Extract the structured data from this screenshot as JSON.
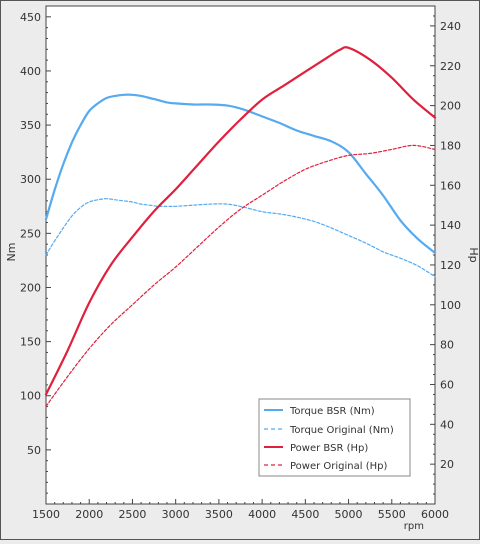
{
  "chart_data": {
    "type": "line",
    "title": "",
    "xlabel": "rpm",
    "ylabel_left": "Nm",
    "ylabel_right": "Hp",
    "xlim": [
      1500,
      6000
    ],
    "ylim_left": [
      0,
      460
    ],
    "ylim_right": [
      0,
      250
    ],
    "x_ticks": [
      1500,
      2000,
      2500,
      3000,
      3500,
      4000,
      4500,
      5000,
      5500,
      6000
    ],
    "y_ticks_left": [
      50,
      100,
      150,
      200,
      250,
      300,
      350,
      400,
      450
    ],
    "y_ticks_right": [
      20,
      40,
      60,
      80,
      100,
      120,
      140,
      160,
      180,
      200,
      220,
      240
    ],
    "grid": false,
    "legend_position": "bottom-right",
    "colors": {
      "torque": "#55aaf0",
      "power": "#e0203c"
    },
    "series": [
      {
        "name": "Torque BSR (Nm)",
        "axis": "left",
        "style": "solid",
        "color": "#55aaf0",
        "x": [
          1500,
          1600,
          1700,
          1800,
          1900,
          2000,
          2100,
          2200,
          2300,
          2400,
          2500,
          2600,
          2700,
          2800,
          2900,
          3000,
          3200,
          3400,
          3600,
          3800,
          4000,
          4200,
          4400,
          4600,
          4800,
          5000,
          5200,
          5400,
          5600,
          5800,
          6000
        ],
        "y": [
          263,
          290,
          314,
          334,
          350,
          363,
          370,
          375,
          377,
          378,
          378,
          377,
          375,
          373,
          371,
          370,
          369,
          369,
          368,
          364,
          358,
          352,
          345,
          340,
          335,
          325,
          305,
          285,
          262,
          245,
          232
        ]
      },
      {
        "name": "Torque Original (Nm)",
        "axis": "left",
        "style": "dashed",
        "color": "#55aaf0",
        "x": [
          1500,
          1600,
          1700,
          1800,
          1900,
          2000,
          2100,
          2200,
          2300,
          2400,
          2500,
          2600,
          2700,
          2800,
          2900,
          3000,
          3200,
          3400,
          3600,
          3800,
          4000,
          4200,
          4400,
          4600,
          4800,
          5000,
          5200,
          5400,
          5600,
          5800,
          6000
        ],
        "y": [
          230,
          243,
          255,
          266,
          274,
          279,
          281,
          282,
          281,
          280,
          279,
          277,
          276,
          275,
          275,
          275,
          276,
          277,
          277,
          274,
          270,
          268,
          265,
          261,
          255,
          248,
          241,
          233,
          227,
          220,
          210
        ]
      },
      {
        "name": "Power BSR (Hp)",
        "axis": "right",
        "style": "solid",
        "color": "#e0203c",
        "x": [
          1500,
          1750,
          2000,
          2250,
          2500,
          2750,
          3000,
          3250,
          3500,
          3750,
          4000,
          4250,
          4500,
          4750,
          4900,
          5000,
          5250,
          5500,
          5750,
          6000
        ],
        "y": [
          55,
          77,
          101,
          120,
          134,
          147,
          158,
          170,
          182,
          193,
          203,
          210,
          217,
          224,
          228,
          229,
          223,
          214,
          203,
          194
        ]
      },
      {
        "name": "Power Original (Hp)",
        "axis": "right",
        "style": "dashed",
        "color": "#e0203c",
        "x": [
          1500,
          1750,
          2000,
          2250,
          2500,
          2750,
          3000,
          3250,
          3500,
          3750,
          4000,
          4250,
          4500,
          4750,
          5000,
          5250,
          5500,
          5750,
          6000
        ],
        "y": [
          49,
          64,
          78,
          90,
          100,
          110,
          119,
          129,
          139,
          148,
          155,
          162,
          168,
          172,
          175,
          176,
          178,
          180,
          178
        ]
      }
    ]
  }
}
